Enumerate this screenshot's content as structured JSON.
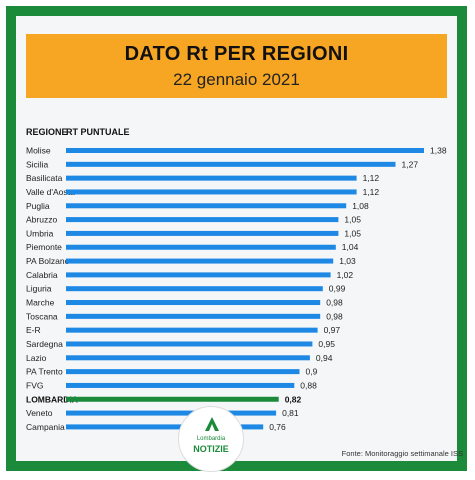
{
  "header": {
    "title": "DATO Rt PER REGIONI",
    "subtitle": "22 gennaio 2021"
  },
  "columns": {
    "region": "REGIONE",
    "value": "RT PUNTUALE"
  },
  "source": "Fonte: Monitoraggio settimanale ISS",
  "logo": {
    "top": "Lombardia",
    "bottom": "NOTIZIE"
  },
  "colors": {
    "frame": "#1b8a3a",
    "header": "#f6a623",
    "bar": "#1e88e5",
    "highlight_bar": "#1b8a3a"
  },
  "chart_data": {
    "type": "bar",
    "orientation": "horizontal",
    "title": "DATO Rt PER REGIONI",
    "subtitle": "22 gennaio 2021",
    "highlight": "LOMBARDIA",
    "categories": [
      "Molise",
      "Sicilia",
      "Basilicata",
      "Valle d'Aosta",
      "Puglia",
      "Abruzzo",
      "Umbria",
      "Piemonte",
      "PA Bolzano",
      "Calabria",
      "Liguria",
      "Marche",
      "Toscana",
      "E-R",
      "Sardegna",
      "Lazio",
      "PA Trento",
      "FVG",
      "LOMBARDIA",
      "Veneto",
      "Campania"
    ],
    "value_labels": [
      "1,38",
      "1,27",
      "1,12",
      "1,12",
      "1,08",
      "1,05",
      "1,05",
      "1,04",
      "1,03",
      "1,02",
      "0,99",
      "0,98",
      "0,98",
      "0,97",
      "0,95",
      "0,94",
      "0,9",
      "0,88",
      "0,82",
      "0,81",
      "0,76"
    ],
    "values": [
      1.38,
      1.27,
      1.12,
      1.12,
      1.08,
      1.05,
      1.05,
      1.04,
      1.03,
      1.02,
      0.99,
      0.98,
      0.98,
      0.97,
      0.95,
      0.94,
      0.9,
      0.88,
      0.82,
      0.81,
      0.76
    ]
  }
}
